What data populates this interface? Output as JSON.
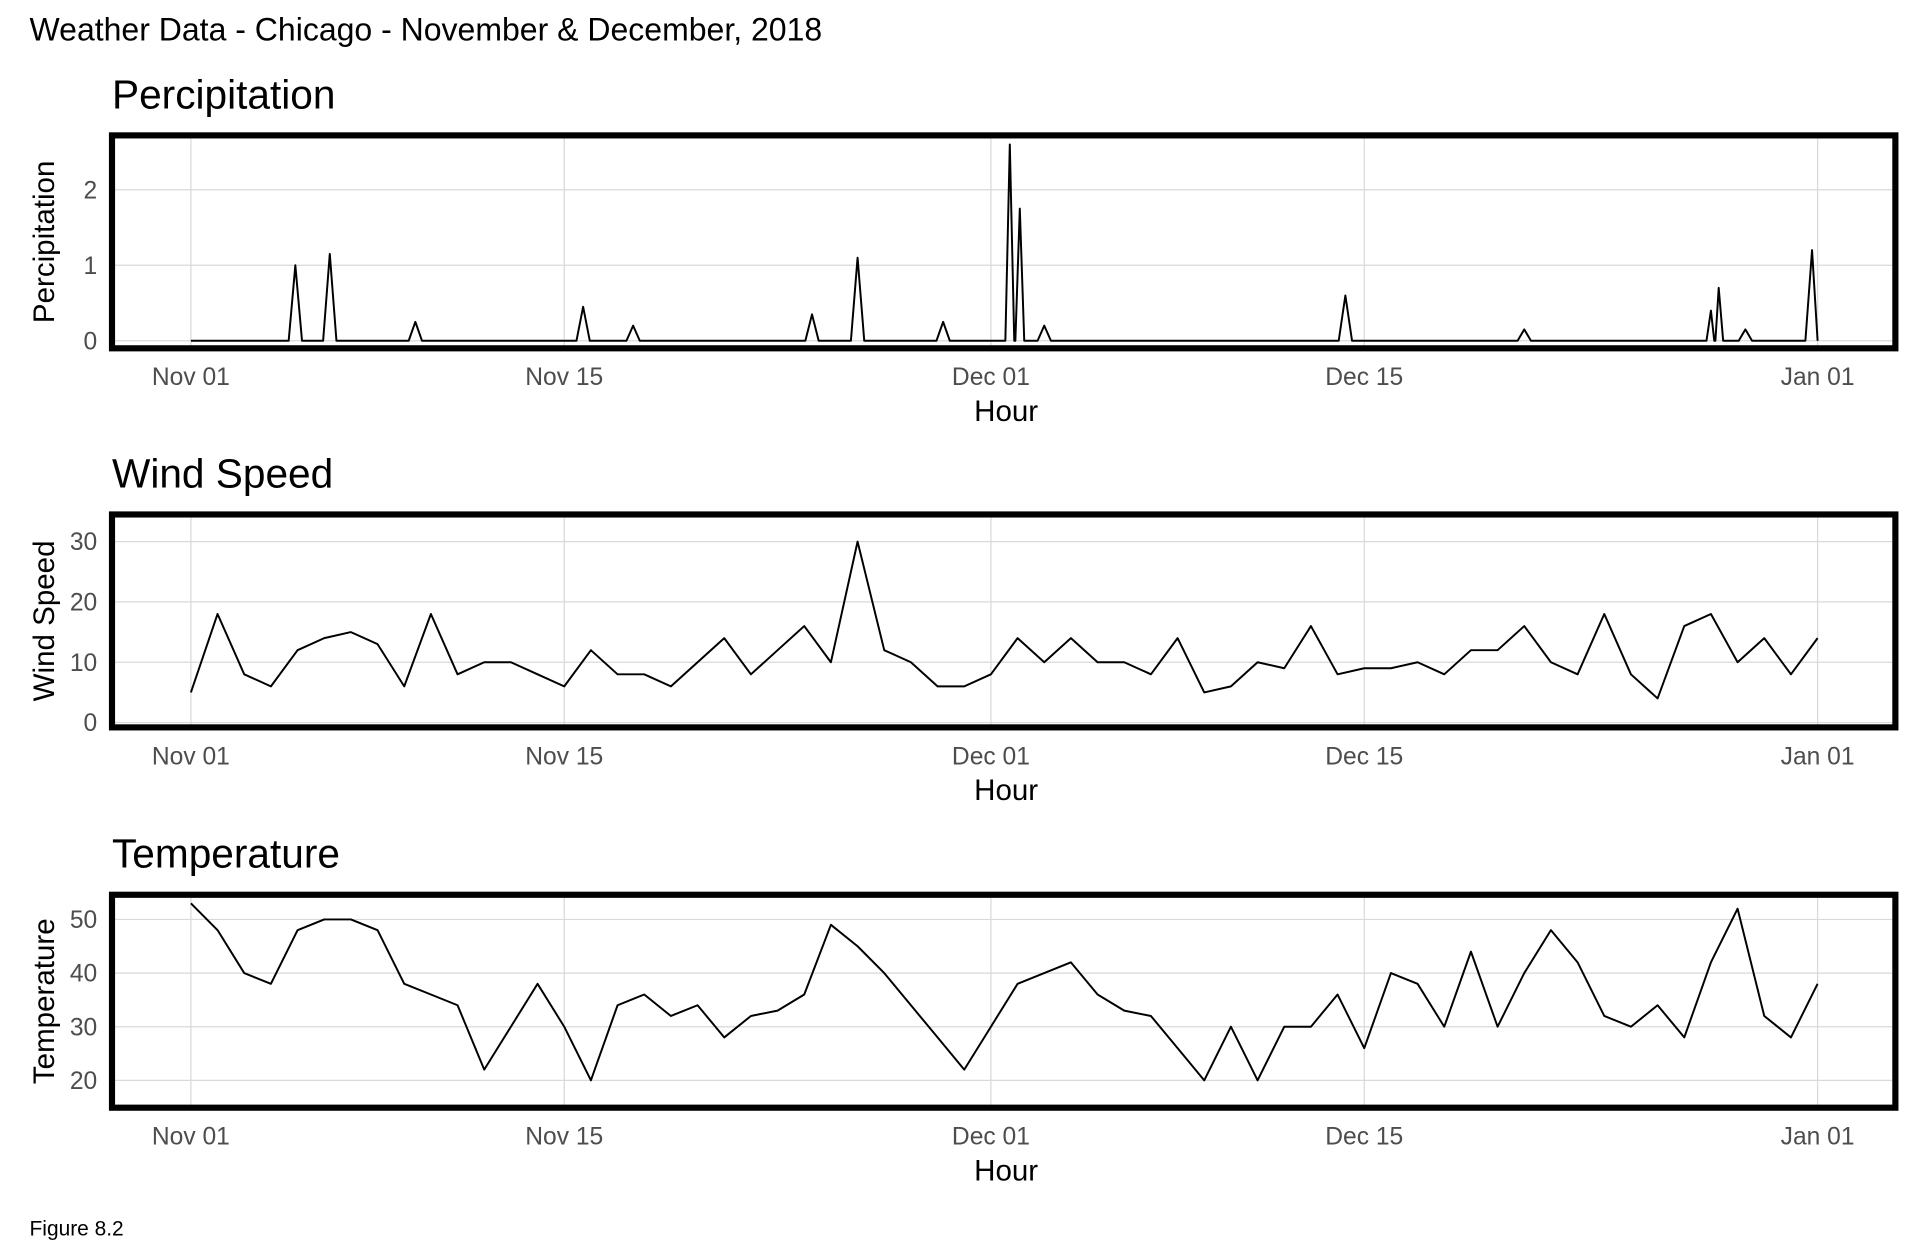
{
  "title": "Weather Data - Chicago - November & December, 2018",
  "caption": "Figure 8.2",
  "chart_data": [
    {
      "type": "line",
      "title": "Percipitation",
      "xlabel": "Hour",
      "ylabel": "Percipitation",
      "color": "#000000",
      "grid": true,
      "xlim": [
        -71,
        1534
      ],
      "ylim": [
        -0.1,
        2.72
      ],
      "xticks": [
        {
          "value": 0,
          "label": "Nov 01"
        },
        {
          "value": 336,
          "label": "Nov 15"
        },
        {
          "value": 720,
          "label": "Dec 01"
        },
        {
          "value": 1056,
          "label": "Dec 15"
        },
        {
          "value": 1464,
          "label": "Jan 01"
        }
      ],
      "yticks": [
        0,
        1,
        2
      ],
      "x": [
        0,
        88,
        94,
        100,
        119,
        125,
        131,
        196,
        202,
        208,
        347,
        353,
        359,
        392,
        398,
        404,
        553,
        559,
        565,
        594,
        600,
        606,
        671,
        677,
        683,
        733,
        737,
        741,
        742,
        746,
        750,
        762,
        768,
        774,
        1033,
        1039,
        1045,
        1194,
        1200,
        1206,
        1364,
        1368,
        1371,
        1372,
        1375,
        1379,
        1393,
        1399,
        1405,
        1453,
        1459,
        1464
      ],
      "values": [
        0,
        0,
        1.0,
        0,
        0,
        1.15,
        0,
        0,
        0.25,
        0,
        0,
        0.45,
        0,
        0,
        0.2,
        0,
        0,
        0.35,
        0,
        0,
        1.1,
        0,
        0,
        0.25,
        0,
        0,
        2.6,
        0,
        0,
        1.75,
        0,
        0,
        0.2,
        0,
        0,
        0.6,
        0,
        0,
        0.15,
        0,
        0,
        0.4,
        0,
        0,
        0.7,
        0,
        0,
        0.15,
        0,
        0,
        1.2,
        0
      ]
    },
    {
      "type": "line",
      "title": "Wind Speed",
      "xlabel": "Hour",
      "ylabel": "Wind Speed",
      "color": "#000000",
      "grid": true,
      "xlim": [
        -71,
        1534
      ],
      "ylim": [
        -0.8,
        34.5
      ],
      "xticks": [
        {
          "value": 0,
          "label": "Nov 01"
        },
        {
          "value": 336,
          "label": "Nov 15"
        },
        {
          "value": 720,
          "label": "Dec 01"
        },
        {
          "value": 1056,
          "label": "Dec 15"
        },
        {
          "value": 1464,
          "label": "Jan 01"
        }
      ],
      "yticks": [
        0,
        10,
        20,
        30
      ],
      "x": [
        0,
        24,
        48,
        72,
        96,
        120,
        144,
        168,
        192,
        216,
        240,
        264,
        288,
        312,
        336,
        360,
        384,
        408,
        432,
        456,
        480,
        504,
        528,
        552,
        576,
        600,
        624,
        648,
        672,
        696,
        720,
        744,
        768,
        792,
        816,
        840,
        864,
        888,
        912,
        936,
        960,
        984,
        1008,
        1032,
        1056,
        1080,
        1104,
        1128,
        1152,
        1176,
        1200,
        1224,
        1248,
        1272,
        1296,
        1320,
        1344,
        1368,
        1392,
        1416,
        1440,
        1464
      ],
      "values": [
        5,
        18,
        8,
        6,
        12,
        14,
        15,
        13,
        6,
        18,
        8,
        10,
        10,
        8,
        6,
        12,
        8,
        8,
        6,
        10,
        14,
        8,
        12,
        16,
        10,
        30,
        12,
        10,
        6,
        6,
        8,
        14,
        10,
        14,
        10,
        10,
        8,
        14,
        5,
        6,
        10,
        9,
        16,
        8,
        9,
        9,
        10,
        8,
        12,
        12,
        16,
        10,
        8,
        18,
        8,
        4,
        16,
        18,
        10,
        14,
        8,
        14
      ]
    },
    {
      "type": "line",
      "title": "Temperature",
      "xlabel": "Hour",
      "ylabel": "Temperature",
      "color": "#000000",
      "grid": true,
      "xlim": [
        -71,
        1534
      ],
      "ylim": [
        14.9,
        54.6
      ],
      "xticks": [
        {
          "value": 0,
          "label": "Nov 01"
        },
        {
          "value": 336,
          "label": "Nov 15"
        },
        {
          "value": 720,
          "label": "Dec 01"
        },
        {
          "value": 1056,
          "label": "Dec 15"
        },
        {
          "value": 1464,
          "label": "Jan 01"
        }
      ],
      "yticks": [
        20,
        30,
        40,
        50
      ],
      "x": [
        0,
        24,
        48,
        72,
        96,
        120,
        144,
        168,
        192,
        216,
        240,
        264,
        288,
        312,
        336,
        360,
        384,
        408,
        432,
        456,
        480,
        504,
        528,
        552,
        576,
        600,
        624,
        648,
        672,
        696,
        720,
        744,
        768,
        792,
        816,
        840,
        864,
        888,
        912,
        936,
        960,
        984,
        1008,
        1032,
        1056,
        1080,
        1104,
        1128,
        1152,
        1176,
        1200,
        1224,
        1248,
        1272,
        1296,
        1320,
        1344,
        1368,
        1392,
        1416,
        1440,
        1464
      ],
      "values": [
        53,
        48,
        40,
        38,
        48,
        50,
        50,
        48,
        38,
        36,
        34,
        22,
        30,
        38,
        30,
        20,
        34,
        36,
        32,
        34,
        28,
        32,
        33,
        36,
        49,
        45,
        40,
        34,
        28,
        22,
        30,
        38,
        40,
        42,
        36,
        33,
        32,
        26,
        20,
        30,
        20,
        30,
        30,
        36,
        26,
        40,
        38,
        30,
        44,
        30,
        40,
        48,
        42,
        32,
        30,
        34,
        28,
        42,
        52,
        32,
        28,
        38
      ]
    }
  ]
}
